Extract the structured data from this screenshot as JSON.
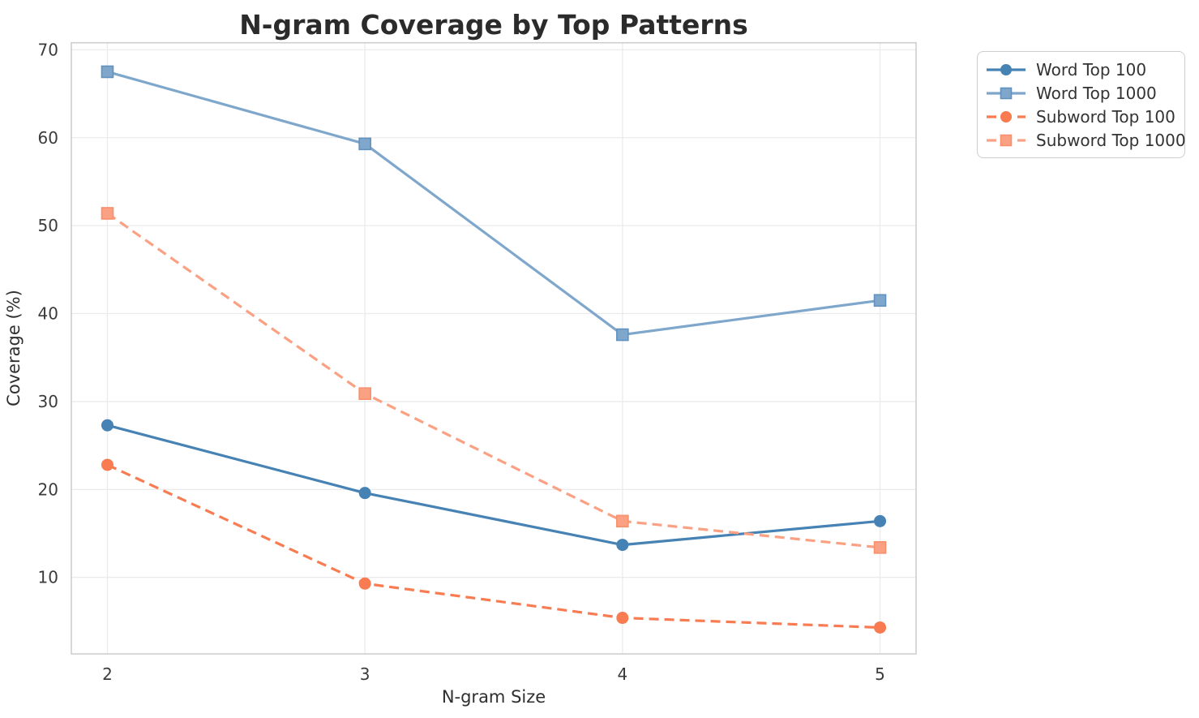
{
  "title": "N-gram Coverage by Top Patterns",
  "chart_data": {
    "type": "line",
    "title": "N-gram Coverage by Top Patterns",
    "xlabel": "N-gram Size",
    "ylabel": "Coverage (%)",
    "x": [
      2,
      3,
      4,
      5
    ],
    "xticks": [
      2,
      3,
      4,
      5
    ],
    "yticks": [
      10,
      20,
      30,
      40,
      50,
      60,
      70
    ],
    "xlim": [
      1.86,
      5.14
    ],
    "ylim": [
      1.3,
      70.8
    ],
    "grid": true,
    "legend_position": "outside-top-right",
    "series": [
      {
        "name": "Word Top 100",
        "values": [
          27.3,
          19.6,
          13.7,
          16.4
        ],
        "color": "#4682B4",
        "marker_edge": "#3E74A1",
        "dash": "solid",
        "marker": "circle"
      },
      {
        "name": "Word Top 1000",
        "values": [
          67.5,
          59.3,
          37.6,
          41.5
        ],
        "color": "#7FA7CC",
        "marker_edge": "#6191BE",
        "dash": "solid",
        "marker": "square"
      },
      {
        "name": "Subword Top 100",
        "values": [
          22.8,
          9.3,
          5.4,
          4.3
        ],
        "color": "#F87B52",
        "marker_edge": "#F26A41",
        "dash": "dashed",
        "marker": "circle"
      },
      {
        "name": "Subword Top 1000",
        "values": [
          51.4,
          30.9,
          16.4,
          13.4
        ],
        "color": "#FBA183",
        "marker_edge": "#F98F6B",
        "dash": "dashed",
        "marker": "square"
      }
    ]
  },
  "style": {
    "grid_color": "#ebebeb",
    "spine_color": "#cccccc",
    "background": "#ffffff"
  }
}
